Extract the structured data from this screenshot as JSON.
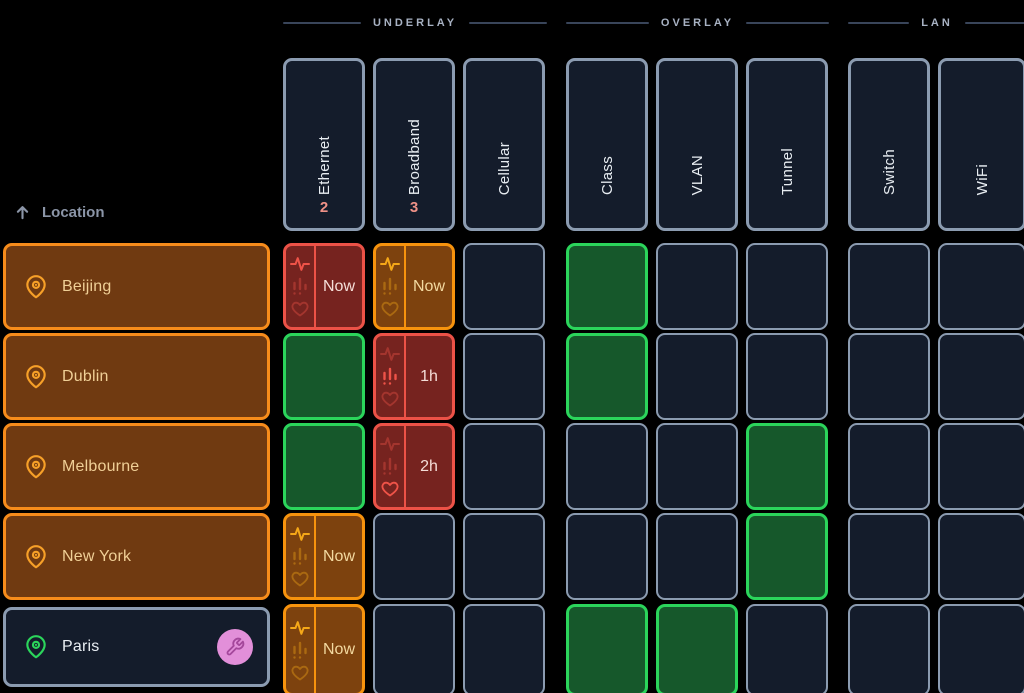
{
  "groups": [
    {
      "label": "UNDERLAY",
      "columns": [
        {
          "label": "Ethernet",
          "count": "2"
        },
        {
          "label": "Broadband",
          "count": "3"
        },
        {
          "label": "Cellular",
          "count": ""
        }
      ]
    },
    {
      "label": "OVERLAY",
      "columns": [
        {
          "label": "Class",
          "count": ""
        },
        {
          "label": "VLAN",
          "count": ""
        },
        {
          "label": "Tunnel",
          "count": ""
        }
      ]
    },
    {
      "label": "LAN",
      "columns": [
        {
          "label": "Switch",
          "count": ""
        },
        {
          "label": "WiFi",
          "count": ""
        }
      ]
    }
  ],
  "location_header": {
    "label": "Location",
    "sort": "ascending"
  },
  "rows": [
    {
      "location": "Beijing",
      "maintenance": false,
      "cells": [
        {
          "state": "critical",
          "metric": "pulse",
          "label": "Now"
        },
        {
          "state": "warning",
          "metric": "pulse",
          "label": "Now"
        },
        {
          "state": "empty"
        },
        {
          "state": "good"
        },
        {
          "state": "empty"
        },
        {
          "state": "empty"
        },
        {
          "state": "empty"
        },
        {
          "state": "empty"
        }
      ]
    },
    {
      "location": "Dublin",
      "maintenance": false,
      "cells": [
        {
          "state": "good"
        },
        {
          "state": "critical",
          "metric": "bars",
          "label": "1h"
        },
        {
          "state": "empty"
        },
        {
          "state": "good"
        },
        {
          "state": "empty"
        },
        {
          "state": "empty"
        },
        {
          "state": "empty"
        },
        {
          "state": "empty"
        }
      ]
    },
    {
      "location": "Melbourne",
      "maintenance": false,
      "cells": [
        {
          "state": "good"
        },
        {
          "state": "critical",
          "metric": "heart",
          "label": "2h"
        },
        {
          "state": "empty"
        },
        {
          "state": "empty"
        },
        {
          "state": "empty"
        },
        {
          "state": "good"
        },
        {
          "state": "empty"
        },
        {
          "state": "empty"
        }
      ]
    },
    {
      "location": "New York",
      "maintenance": false,
      "cells": [
        {
          "state": "warning",
          "metric": "pulse",
          "label": "Now"
        },
        {
          "state": "empty"
        },
        {
          "state": "empty"
        },
        {
          "state": "empty"
        },
        {
          "state": "empty"
        },
        {
          "state": "good"
        },
        {
          "state": "empty"
        },
        {
          "state": "empty"
        }
      ]
    },
    {
      "location": "Paris",
      "maintenance": true,
      "cells": [
        {
          "state": "warning",
          "metric": "pulse",
          "label": "Now"
        },
        {
          "state": "empty"
        },
        {
          "state": "empty"
        },
        {
          "state": "good"
        },
        {
          "state": "good"
        },
        {
          "state": "empty"
        },
        {
          "state": "empty"
        },
        {
          "state": "empty"
        }
      ]
    }
  ],
  "colors": {
    "background": "#000000",
    "neutral_bg": "#141c2b",
    "neutral_border": "#8b9bb0",
    "good_bg": "#16582b",
    "good_border": "#2bd55b",
    "critical_bg": "#76231f",
    "critical_border": "#ec5247",
    "critical_icon": "#ef5348",
    "critical_text": "#f5ded8",
    "warning_bg": "#7d420e",
    "warning_border": "#f7930d",
    "warning_icon": "#f5a818",
    "warning_text": "#f3d9a0",
    "location_bg": "#703a11",
    "location_border": "#f78c1b",
    "location_text": "#f0cf96",
    "location_pin": "#f7a028",
    "maintenance_badge_bg": "#e28fd9",
    "maintenance_badge_icon": "#a4479b",
    "count_text": "#ef9187",
    "header_text": "#e8edf2",
    "muted_text": "#8b95a7",
    "group_line": "#39455a"
  }
}
